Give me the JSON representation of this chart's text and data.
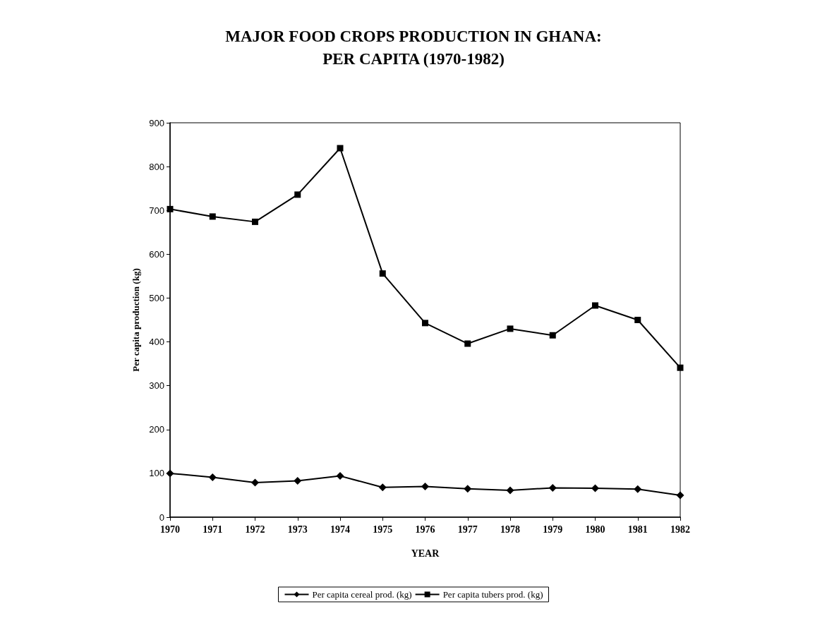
{
  "chart_data": {
    "type": "line",
    "title": "MAJOR FOOD CROPS PRODUCTION IN GHANA:\nPER CAPITA (1970-1982)",
    "xlabel": "YEAR",
    "ylabel": "Per capita production (kg)",
    "categories": [
      "1970",
      "1971",
      "1972",
      "1973",
      "1974",
      "1975",
      "1976",
      "1977",
      "1978",
      "1979",
      "1980",
      "1981",
      "1982"
    ],
    "series": [
      {
        "name": "Per capita cereal prod. (kg)",
        "color": "#000000",
        "marker": "diamond",
        "values": [
          100,
          91,
          79,
          83,
          94,
          68,
          70,
          65,
          61,
          67,
          66,
          64,
          50
        ]
      },
      {
        "name": "Per capita tubers prod. (kg)",
        "color": "#000000",
        "marker": "square",
        "values": [
          703,
          686,
          674,
          736,
          842,
          556,
          443,
          396,
          430,
          415,
          483,
          450,
          341
        ]
      }
    ],
    "ylim": [
      0,
      900
    ],
    "yticks": [
      0,
      100,
      200,
      300,
      400,
      500,
      600,
      700,
      800,
      900
    ],
    "grid": false,
    "legend": "bottom",
    "line_style": "solid"
  }
}
